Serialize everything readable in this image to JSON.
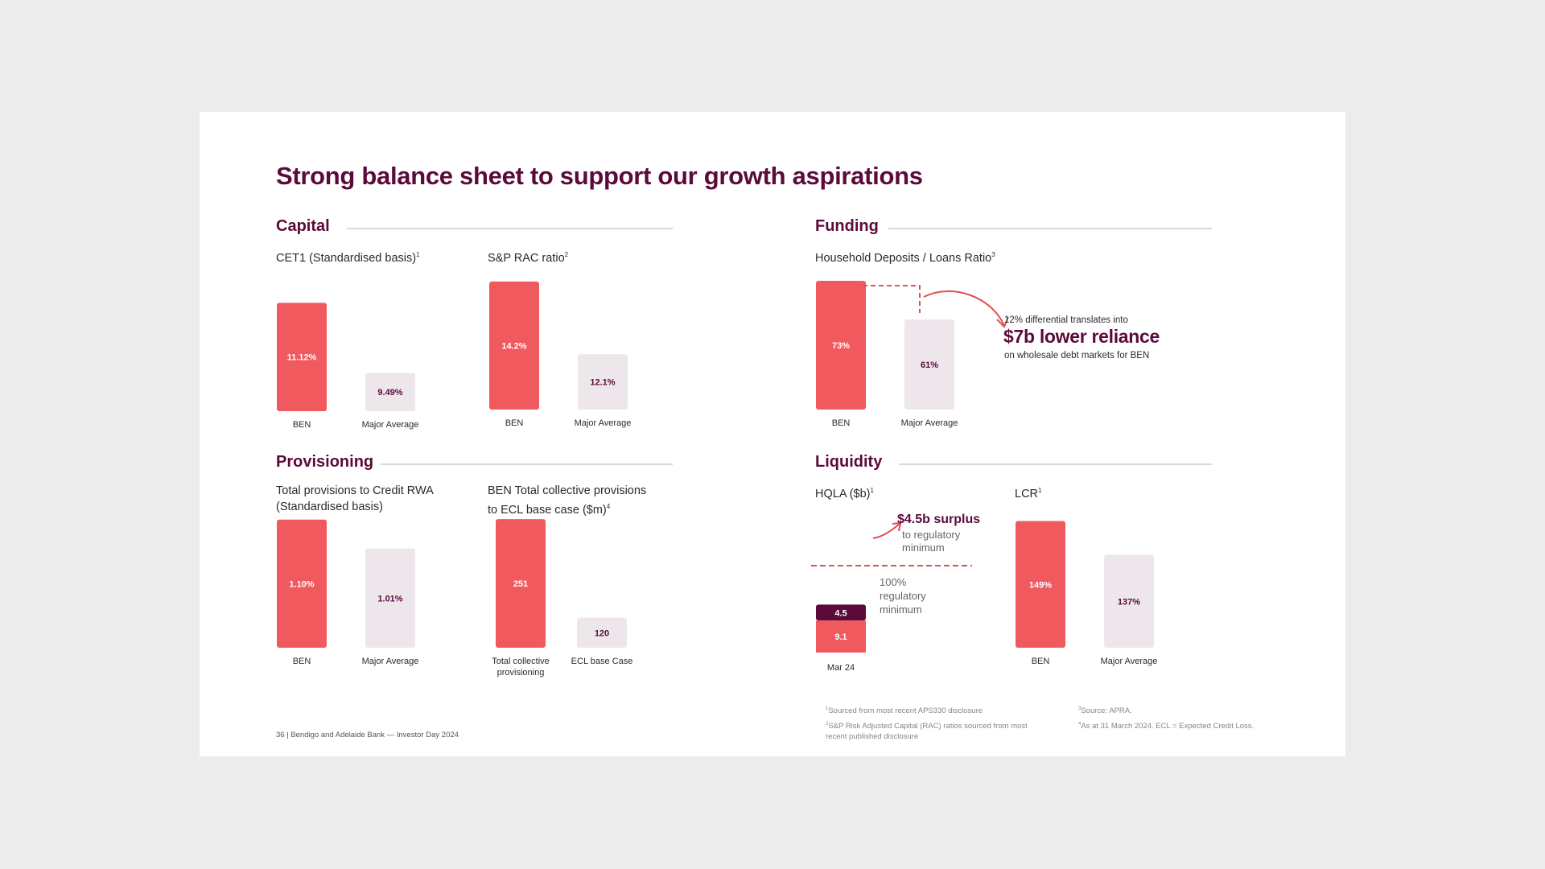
{
  "title": "Strong balance sheet to support our growth aspirations",
  "sections": {
    "capital": "Capital",
    "funding": "Funding",
    "provisioning": "Provisioning",
    "liquidity": "Liquidity"
  },
  "subtitles": {
    "cet1": "CET1 (Standardised basis)",
    "cet1_sup": "1",
    "sp_rac": "S&P RAC ratio",
    "sp_rac_sup": "2",
    "household": "Household Deposits / Loans Ratio",
    "household_sup": "3",
    "provisions_line1": "Total provisions to Credit RWA",
    "provisions_line2": "(Standardised basis)",
    "collective_line1": "BEN Total collective provisions",
    "collective_line2": "to ECL base case ($m)",
    "collective_sup": "4",
    "hqla": "HQLA ($b)",
    "hqla_sup": "1",
    "lcr": "LCR",
    "lcr_sup": "1"
  },
  "colors": {
    "primary_bar": "#f05a5f",
    "secondary_bar": "#ede7ec",
    "dark_bar": "#5b0a3a",
    "label_on_primary": "#ffffff",
    "label_on_secondary": "#5b0a3a",
    "dashed": "#e0504f"
  },
  "funding_callout": {
    "line1": "12% differential translates into",
    "big": "$7b lower reliance",
    "line3": "on wholesale debt markets for BEN"
  },
  "liquidity_callout": {
    "surplus": "$4.5b surplus",
    "surplus_line1": "to regulatory",
    "surplus_line2": "minimum",
    "reg_line1": "100%",
    "reg_line2": "regulatory",
    "reg_line3": "minimum"
  },
  "footnotes": {
    "f1_sup": "1",
    "f1": "Sourced from most recent APS330 disclosure",
    "f2_sup": "2",
    "f2_line1": "S&P Risk Adjusted Capital (RAC) ratios sourced from most",
    "f2_line2": "recent published disclosure",
    "f3_sup": "3",
    "f3": "Source: APRA.",
    "f4_sup": "4",
    "f4": "As at 31 March 2024.  ECL = Expected Credit Loss."
  },
  "footer": "36 | Bendigo and Adelaide Bank — Investor Day 2024",
  "chart_data": [
    {
      "type": "bar",
      "title": "CET1 (Standardised basis)",
      "categories": [
        "BEN",
        "Major Average"
      ],
      "values": [
        11.12,
        9.49
      ],
      "labels": [
        "11.12%",
        "9.49%"
      ]
    },
    {
      "type": "bar",
      "title": "S&P RAC ratio",
      "categories": [
        "BEN",
        "Major Average"
      ],
      "values": [
        14.2,
        12.1
      ],
      "labels": [
        "14.2%",
        "12.1%"
      ]
    },
    {
      "type": "bar",
      "title": "Household Deposits / Loans Ratio",
      "categories": [
        "BEN",
        "Major Average"
      ],
      "values": [
        73,
        61
      ],
      "labels": [
        "73%",
        "61%"
      ]
    },
    {
      "type": "bar",
      "title": "Total provisions to Credit RWA (Standardised basis)",
      "categories": [
        "BEN",
        "Major Average"
      ],
      "values": [
        1.1,
        1.01
      ],
      "labels": [
        "1.10%",
        "1.01%"
      ]
    },
    {
      "type": "bar",
      "title": "BEN Total collective provisions to ECL base case ($m)",
      "categories": [
        "Total collective provisioning",
        "ECL base Case"
      ],
      "values": [
        251,
        120
      ],
      "labels": [
        "251",
        "120"
      ]
    },
    {
      "type": "bar",
      "title": "HQLA ($b)",
      "categories": [
        "Mar 24"
      ],
      "stacked": true,
      "series": [
        {
          "values": [
            9.1
          ],
          "labels": [
            "9.1"
          ]
        },
        {
          "values": [
            4.5
          ],
          "labels": [
            "4.5"
          ]
        }
      ]
    },
    {
      "type": "bar",
      "title": "LCR",
      "categories": [
        "BEN",
        "Major Average"
      ],
      "values": [
        149,
        137
      ],
      "labels": [
        "149%",
        "137%"
      ]
    }
  ]
}
